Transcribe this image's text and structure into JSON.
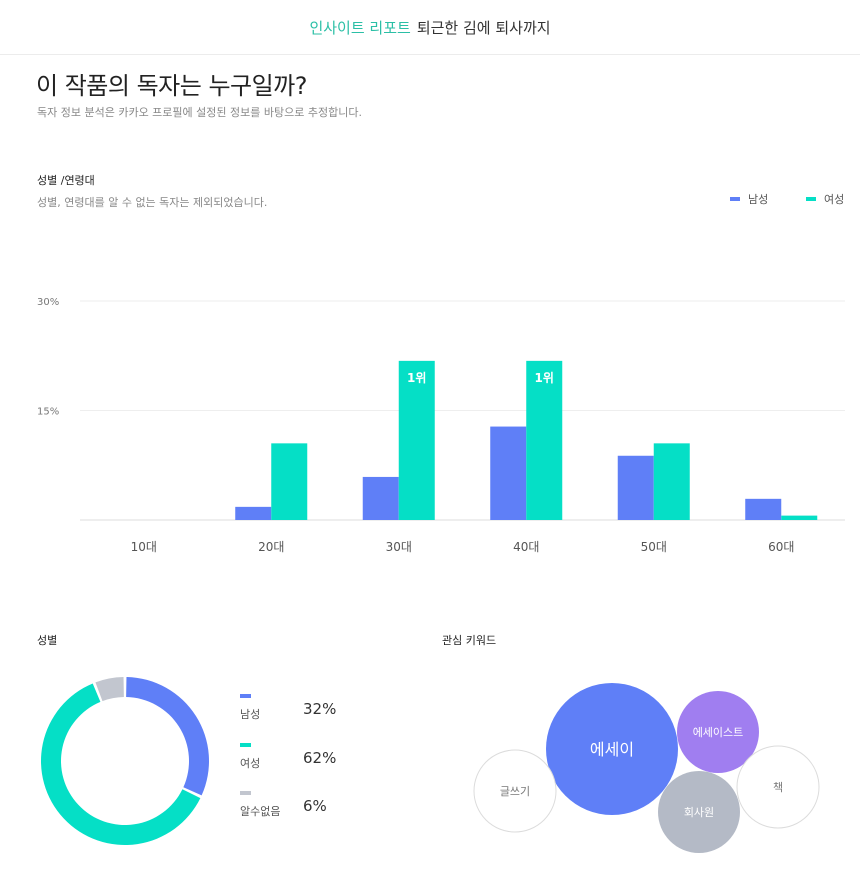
{
  "header": {
    "accent": "인사이트 리포트",
    "book": "퇴근한 김에 퇴사까지"
  },
  "page": {
    "title": "이 작품의 독자는 누구일까?",
    "subtitle": "독자 정보 분석은 카카오 프로필에 설정된 정보를 바탕으로 추정합니다."
  },
  "age_section": {
    "label": "성별 /연령대",
    "note": "성별, 연령대를 알 수 없는 독자는 제외되었습니다.",
    "legend": [
      {
        "name": "남성",
        "color": "#5f7ff7"
      },
      {
        "name": "여성",
        "color": "#05dfc6"
      }
    ]
  },
  "gender_section": {
    "label": "성별",
    "items": [
      {
        "name": "남성",
        "value": "32%",
        "color": "#5f7ff7"
      },
      {
        "name": "여성",
        "value": "62%",
        "color": "#05dfc6"
      },
      {
        "name": "알수없음",
        "value": "6%",
        "color": "#c2c6cf"
      }
    ]
  },
  "keyword_section": {
    "label": "관심 키워드"
  },
  "chart_data": [
    {
      "type": "bar",
      "categories": [
        "10대",
        "20대",
        "30대",
        "40대",
        "50대",
        "60대"
      ],
      "series": [
        {
          "name": "남성",
          "color": "#5f7ff7",
          "values": [
            0,
            1.8,
            5.9,
            12.8,
            8.8,
            2.9
          ]
        },
        {
          "name": "여성",
          "color": "#05dfc6",
          "values": [
            0,
            10.5,
            21.8,
            21.8,
            10.5,
            0.6
          ]
        }
      ],
      "yticks": [
        "30%",
        "15%"
      ],
      "ylim": [
        0,
        30
      ],
      "annotations": [
        {
          "category": "30대",
          "series": "여성",
          "text": "1위"
        },
        {
          "category": "40대",
          "series": "여성",
          "text": "1위"
        }
      ],
      "grid": true,
      "legend_position": "top-right"
    },
    {
      "type": "pie",
      "style": "donut",
      "labels": [
        "남성",
        "여성",
        "알수없음"
      ],
      "values": [
        32,
        62,
        6
      ],
      "colors": [
        "#5f7ff7",
        "#05dfc6",
        "#c2c6cf"
      ]
    },
    {
      "type": "bubble",
      "keywords": [
        {
          "text": "에세이",
          "weight": 100,
          "style": "filled",
          "color": "#5f7ff7"
        },
        {
          "text": "에세이스트",
          "weight": 45,
          "style": "filled",
          "color": "#a07ef0"
        },
        {
          "text": "회사원",
          "weight": 45,
          "style": "filled",
          "color": "#b4bac6"
        },
        {
          "text": "책",
          "weight": 45,
          "style": "outline",
          "color": "#dcdcdc"
        },
        {
          "text": "글쓰기",
          "weight": 45,
          "style": "outline",
          "color": "#dcdcdc"
        }
      ]
    }
  ]
}
